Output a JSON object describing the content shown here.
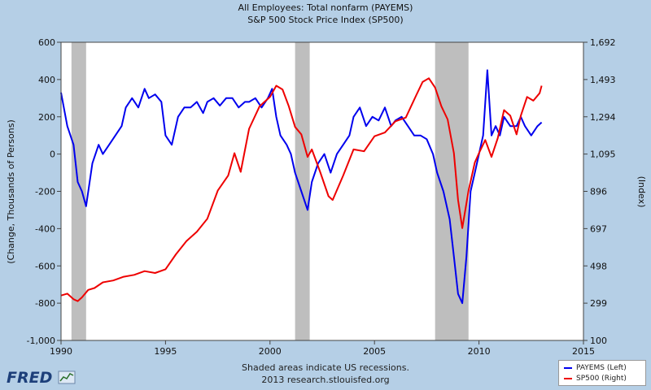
{
  "chart_data": {
    "type": "line",
    "title": "All Employees: Total nonfarm (PAYEMS)",
    "subtitle": "S&P 500 Stock Price Index (SP500)",
    "xlabel": "",
    "ylabel_left": "(Change, Thousands of Persons)",
    "ylabel_right": "(Index)",
    "xlim": [
      1990,
      2015
    ],
    "x_ticks": [
      1990,
      1995,
      2000,
      2005,
      2010,
      2015
    ],
    "x_tick_labels": [
      "1990",
      "1995",
      "2000",
      "2005",
      "2010",
      "2015"
    ],
    "ylim_left": [
      -1000,
      600
    ],
    "y_ticks_left": [
      -1000,
      -800,
      -600,
      -400,
      -200,
      0,
      200,
      400,
      600
    ],
    "y_tick_labels_left": [
      "-1,000",
      "-800",
      "-600",
      "-400",
      "-200",
      "0",
      "200",
      "400",
      "600"
    ],
    "ylim_right": [
      100,
      1692
    ],
    "y_ticks_right": [
      100,
      299,
      498,
      697,
      896,
      1095,
      1294,
      1493,
      1692
    ],
    "y_tick_labels_right": [
      "100",
      "299",
      "498",
      "697",
      "896",
      "1,095",
      "1,294",
      "1,493",
      "1,692"
    ],
    "grid": false,
    "legend_position": "bottom-right",
    "recessions": [
      [
        1990.5,
        1991.2
      ],
      [
        2001.2,
        2001.9
      ],
      [
        2007.9,
        2009.5
      ]
    ],
    "recession_color": "#bebebe",
    "series": [
      {
        "name": "PAYEMS (Left)",
        "axis": "left",
        "color": "#0000ee",
        "x": [
          1990.0,
          1990.3,
          1990.6,
          1990.8,
          1991.0,
          1991.2,
          1991.5,
          1991.8,
          1992.0,
          1992.3,
          1992.6,
          1992.9,
          1993.1,
          1993.4,
          1993.7,
          1994.0,
          1994.2,
          1994.5,
          1994.8,
          1995.0,
          1995.3,
          1995.6,
          1995.9,
          1996.2,
          1996.5,
          1996.8,
          1997.0,
          1997.3,
          1997.6,
          1997.9,
          1998.2,
          1998.5,
          1998.8,
          1999.0,
          1999.3,
          1999.6,
          1999.9,
          2000.1,
          2000.3,
          2000.5,
          2000.8,
          2001.0,
          2001.2,
          2001.5,
          2001.8,
          2002.0,
          2002.3,
          2002.6,
          2002.9,
          2003.2,
          2003.5,
          2003.8,
          2004.0,
          2004.3,
          2004.6,
          2004.9,
          2005.2,
          2005.5,
          2005.8,
          2006.0,
          2006.3,
          2006.6,
          2006.9,
          2007.2,
          2007.5,
          2007.8,
          2008.0,
          2008.3,
          2008.6,
          2008.8,
          2009.0,
          2009.2,
          2009.4,
          2009.6,
          2009.8,
          2010.0,
          2010.2,
          2010.4,
          2010.6,
          2010.8,
          2011.0,
          2011.2,
          2011.5,
          2011.8,
          2012.0,
          2012.2,
          2012.5,
          2012.8,
          2013.0
        ],
        "values": [
          330,
          150,
          50,
          -150,
          -200,
          -280,
          -50,
          50,
          0,
          50,
          100,
          150,
          250,
          300,
          250,
          350,
          300,
          320,
          280,
          100,
          50,
          200,
          250,
          250,
          280,
          220,
          280,
          300,
          260,
          300,
          300,
          250,
          280,
          280,
          300,
          250,
          300,
          350,
          200,
          100,
          50,
          0,
          -100,
          -200,
          -300,
          -150,
          -50,
          0,
          -100,
          0,
          50,
          100,
          200,
          250,
          150,
          200,
          180,
          250,
          150,
          180,
          200,
          150,
          100,
          100,
          80,
          0,
          -100,
          -200,
          -350,
          -550,
          -750,
          -800,
          -550,
          -200,
          -100,
          0,
          100,
          450,
          100,
          150,
          100,
          200,
          150,
          150,
          200,
          150,
          100,
          150,
          170
        ]
      },
      {
        "name": "SP500 (Right)",
        "axis": "right",
        "color": "#ee0000",
        "x": [
          1990.0,
          1990.3,
          1990.6,
          1990.8,
          1991.0,
          1991.3,
          1991.6,
          1992.0,
          1992.5,
          1993.0,
          1993.5,
          1994.0,
          1994.5,
          1995.0,
          1995.5,
          1996.0,
          1996.5,
          1997.0,
          1997.5,
          1998.0,
          1998.3,
          1998.6,
          1999.0,
          1999.5,
          2000.0,
          2000.3,
          2000.6,
          2000.9,
          2001.2,
          2001.5,
          2001.8,
          2002.0,
          2002.4,
          2002.8,
          2003.0,
          2003.5,
          2004.0,
          2004.5,
          2005.0,
          2005.5,
          2006.0,
          2006.5,
          2007.0,
          2007.3,
          2007.6,
          2007.9,
          2008.2,
          2008.5,
          2008.8,
          2009.0,
          2009.2,
          2009.5,
          2009.8,
          2010.0,
          2010.3,
          2010.6,
          2010.9,
          2011.2,
          2011.5,
          2011.8,
          2012.0,
          2012.3,
          2012.6,
          2012.9,
          2013.0
        ],
        "values": [
          340,
          350,
          320,
          310,
          330,
          370,
          380,
          410,
          420,
          440,
          450,
          470,
          460,
          480,
          560,
          630,
          680,
          750,
          900,
          980,
          1100,
          1000,
          1230,
          1350,
          1400,
          1460,
          1440,
          1350,
          1240,
          1200,
          1080,
          1120,
          1000,
          870,
          850,
          980,
          1120,
          1110,
          1190,
          1210,
          1270,
          1290,
          1410,
          1480,
          1500,
          1450,
          1350,
          1280,
          1100,
          850,
          700,
          900,
          1050,
          1100,
          1170,
          1080,
          1180,
          1330,
          1300,
          1200,
          1300,
          1400,
          1380,
          1420,
          1460
        ]
      }
    ]
  },
  "footer": {
    "line1": "Shaded areas indicate US recessions.",
    "line2": "2013 research.stlouisfed.org"
  },
  "logo": {
    "text": "FRED"
  }
}
